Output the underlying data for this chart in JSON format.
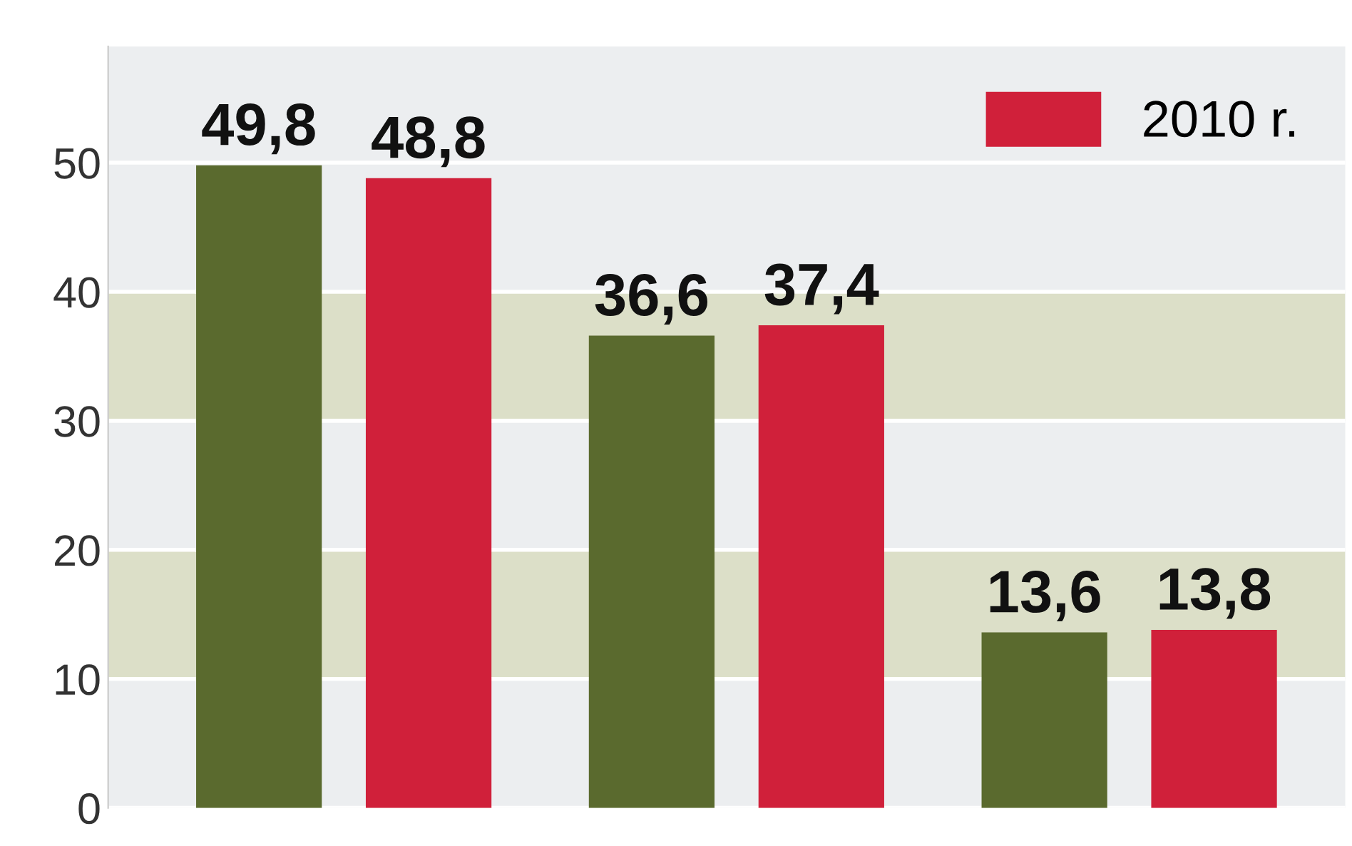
{
  "chart_data": {
    "type": "bar",
    "categories": [
      null,
      null,
      null
    ],
    "series": [
      {
        "color": "#5a6a2e",
        "values": [
          49.8,
          36.6,
          13.6
        ],
        "value_labels": [
          "49,8",
          "36,6",
          "13,6"
        ]
      },
      {
        "name": "2010 r.",
        "color": "#d0203a",
        "values": [
          48.8,
          37.4,
          13.8
        ],
        "value_labels": [
          "48,8",
          "37,4",
          "13,8"
        ]
      }
    ],
    "ylim": [
      0,
      59
    ],
    "yticks": [
      0,
      10,
      20,
      30,
      40,
      50
    ],
    "grid": "y",
    "tick_labels": "y",
    "legend": "top right",
    "bands": [
      {
        "axis": "y",
        "from": 10,
        "to": 20,
        "color": "#dcdfc8"
      },
      {
        "axis": "y",
        "from": 30,
        "to": 40,
        "color": "#dcdfc8"
      }
    ]
  }
}
